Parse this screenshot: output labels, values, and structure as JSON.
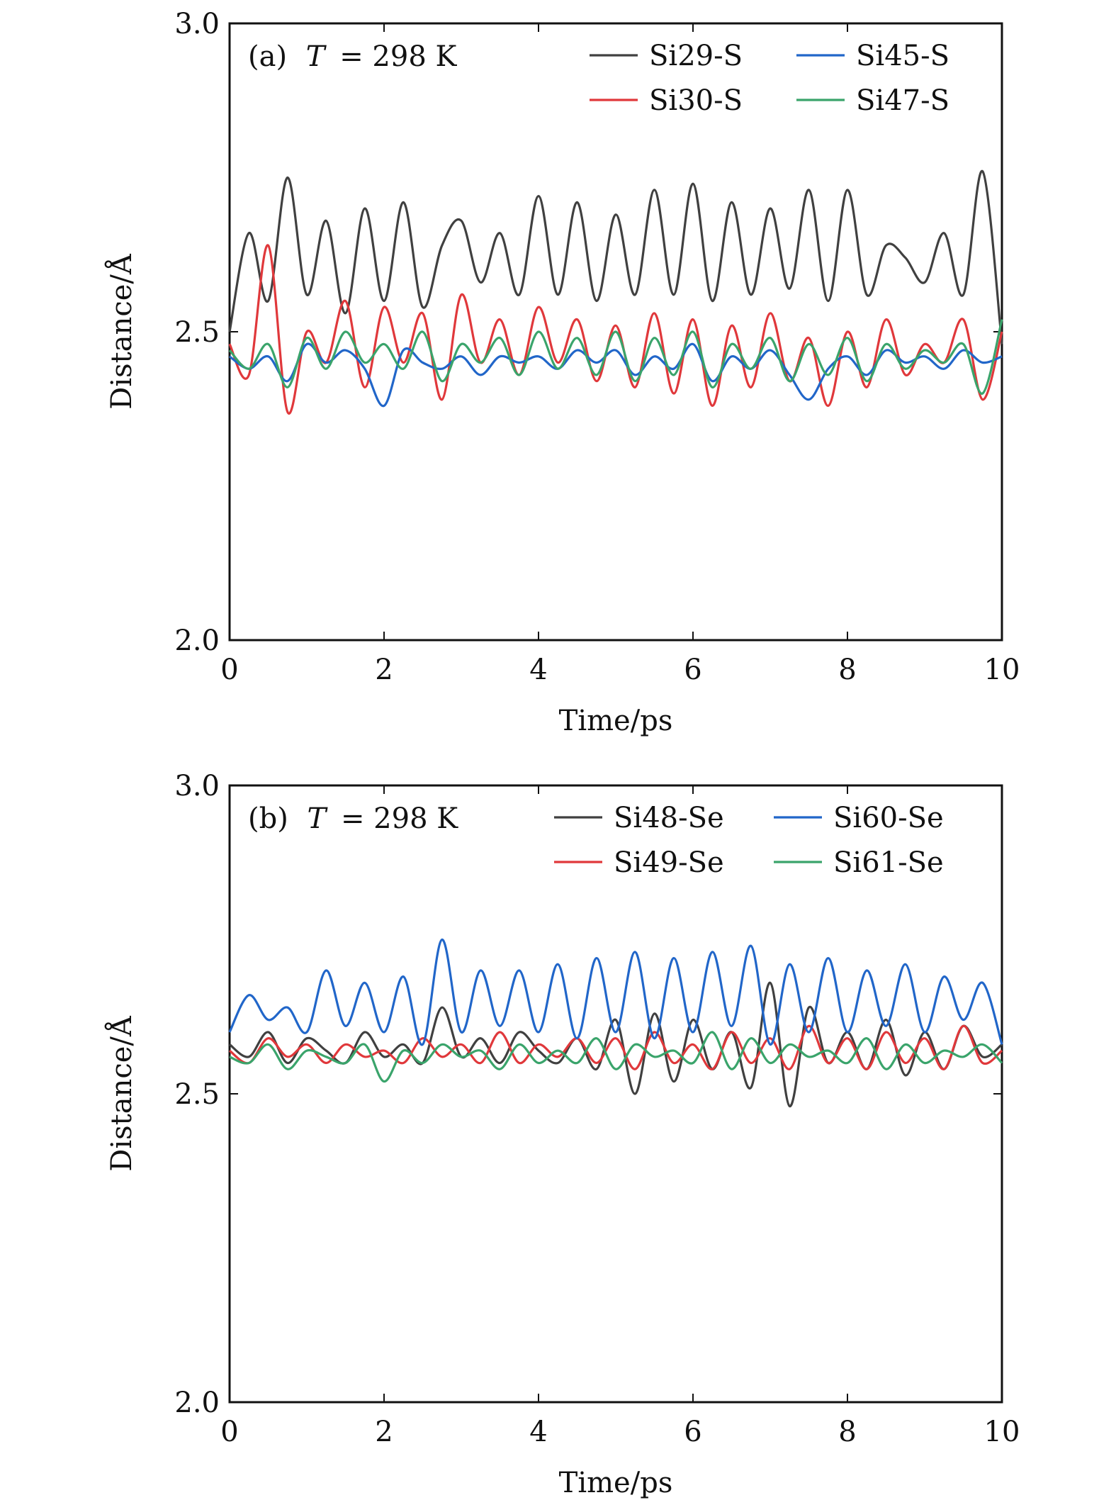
{
  "figure": {
    "colors": {
      "Si29-S": "#404040",
      "Si30-S": "#e0383b",
      "Si45-S": "#2166c9",
      "Si47-S": "#3aa46b",
      "Si48-Se": "#404040",
      "Si49-Se": "#e0383b",
      "Si60-Se": "#2166c9",
      "Si61-Se": "#3aa46b"
    }
  },
  "chart_data": [
    {
      "type": "line",
      "panel_label": "(a)",
      "annotation_T": "T",
      "annotation_rest": "= 298 K",
      "xlabel": "Time/ps",
      "ylabel": "Distance/Å",
      "xlim": [
        0,
        10
      ],
      "ylim": [
        2.0,
        3.0
      ],
      "xticks": [
        "0",
        "2",
        "4",
        "6",
        "8",
        "10"
      ],
      "yticks": [
        "2.0",
        "2.5",
        "3.0"
      ],
      "legend": "top-right",
      "x": [
        0,
        0.25,
        0.5,
        0.75,
        1,
        1.25,
        1.5,
        1.75,
        2,
        2.25,
        2.5,
        2.75,
        3,
        3.25,
        3.5,
        3.75,
        4,
        4.25,
        4.5,
        4.75,
        5,
        5.25,
        5.5,
        5.75,
        6,
        6.25,
        6.5,
        6.75,
        7,
        7.25,
        7.5,
        7.75,
        8,
        8.25,
        8.5,
        8.75,
        9,
        9.25,
        9.5,
        9.75,
        10
      ],
      "series": [
        {
          "name": "Si29-S",
          "color": "#404040",
          "values": [
            2.5,
            2.66,
            2.55,
            2.75,
            2.56,
            2.68,
            2.53,
            2.7,
            2.55,
            2.71,
            2.54,
            2.64,
            2.68,
            2.58,
            2.66,
            2.56,
            2.72,
            2.56,
            2.71,
            2.55,
            2.69,
            2.56,
            2.73,
            2.56,
            2.74,
            2.55,
            2.71,
            2.56,
            2.7,
            2.57,
            2.73,
            2.55,
            2.73,
            2.56,
            2.64,
            2.62,
            2.58,
            2.66,
            2.56,
            2.76,
            2.48
          ]
        },
        {
          "name": "Si30-S",
          "color": "#e0383b",
          "values": [
            2.48,
            2.43,
            2.64,
            2.37,
            2.5,
            2.45,
            2.55,
            2.41,
            2.54,
            2.45,
            2.53,
            2.39,
            2.56,
            2.45,
            2.52,
            2.43,
            2.54,
            2.45,
            2.52,
            2.42,
            2.51,
            2.41,
            2.53,
            2.4,
            2.52,
            2.38,
            2.51,
            2.41,
            2.53,
            2.42,
            2.49,
            2.38,
            2.5,
            2.41,
            2.52,
            2.43,
            2.48,
            2.45,
            2.52,
            2.39,
            2.5
          ]
        },
        {
          "name": "Si45-S",
          "color": "#2166c9",
          "values": [
            2.46,
            2.44,
            2.46,
            2.42,
            2.48,
            2.45,
            2.47,
            2.44,
            2.38,
            2.47,
            2.45,
            2.44,
            2.46,
            2.43,
            2.46,
            2.45,
            2.46,
            2.44,
            2.47,
            2.45,
            2.47,
            2.43,
            2.46,
            2.44,
            2.48,
            2.42,
            2.46,
            2.44,
            2.47,
            2.43,
            2.39,
            2.44,
            2.46,
            2.43,
            2.47,
            2.45,
            2.46,
            2.44,
            2.47,
            2.45,
            2.46
          ]
        },
        {
          "name": "Si47-S",
          "color": "#3aa46b",
          "values": [
            2.47,
            2.44,
            2.48,
            2.41,
            2.49,
            2.44,
            2.5,
            2.45,
            2.48,
            2.44,
            2.5,
            2.42,
            2.48,
            2.45,
            2.49,
            2.43,
            2.5,
            2.44,
            2.49,
            2.43,
            2.5,
            2.42,
            2.49,
            2.43,
            2.5,
            2.41,
            2.48,
            2.44,
            2.49,
            2.42,
            2.48,
            2.43,
            2.49,
            2.42,
            2.48,
            2.44,
            2.47,
            2.45,
            2.48,
            2.4,
            2.52
          ]
        }
      ]
    },
    {
      "type": "line",
      "panel_label": "(b)",
      "annotation_T": "T",
      "annotation_rest": "= 298 K",
      "xlabel": "Time/ps",
      "ylabel": "Distance/Å",
      "xlim": [
        0,
        10
      ],
      "ylim": [
        2.0,
        3.0
      ],
      "xticks": [
        "0",
        "2",
        "4",
        "6",
        "8",
        "10"
      ],
      "yticks": [
        "2.0",
        "2.5",
        "3.0"
      ],
      "legend": "top-right",
      "x": [
        0,
        0.25,
        0.5,
        0.75,
        1,
        1.25,
        1.5,
        1.75,
        2,
        2.25,
        2.5,
        2.75,
        3,
        3.25,
        3.5,
        3.75,
        4,
        4.25,
        4.5,
        4.75,
        5,
        5.25,
        5.5,
        5.75,
        6,
        6.25,
        6.5,
        6.75,
        7,
        7.25,
        7.5,
        7.75,
        8,
        8.25,
        8.5,
        8.75,
        9,
        9.25,
        9.5,
        9.75,
        10
      ],
      "series": [
        {
          "name": "Si48-Se",
          "color": "#404040",
          "values": [
            2.58,
            2.56,
            2.6,
            2.55,
            2.59,
            2.57,
            2.55,
            2.6,
            2.56,
            2.58,
            2.55,
            2.64,
            2.56,
            2.59,
            2.55,
            2.6,
            2.57,
            2.55,
            2.59,
            2.54,
            2.62,
            2.5,
            2.63,
            2.52,
            2.62,
            2.54,
            2.6,
            2.51,
            2.68,
            2.48,
            2.64,
            2.55,
            2.6,
            2.54,
            2.62,
            2.53,
            2.6,
            2.54,
            2.61,
            2.56,
            2.58
          ]
        },
        {
          "name": "Si49-Se",
          "color": "#e0383b",
          "values": [
            2.57,
            2.55,
            2.59,
            2.56,
            2.58,
            2.55,
            2.58,
            2.56,
            2.57,
            2.55,
            2.59,
            2.56,
            2.58,
            2.55,
            2.6,
            2.55,
            2.58,
            2.56,
            2.59,
            2.55,
            2.59,
            2.54,
            2.6,
            2.55,
            2.58,
            2.54,
            2.6,
            2.55,
            2.59,
            2.54,
            2.61,
            2.55,
            2.59,
            2.54,
            2.6,
            2.55,
            2.59,
            2.54,
            2.61,
            2.55,
            2.57
          ]
        },
        {
          "name": "Si60-Se",
          "color": "#2166c9",
          "values": [
            2.6,
            2.66,
            2.62,
            2.64,
            2.6,
            2.7,
            2.61,
            2.68,
            2.6,
            2.69,
            2.58,
            2.75,
            2.6,
            2.7,
            2.61,
            2.7,
            2.6,
            2.71,
            2.59,
            2.72,
            2.6,
            2.73,
            2.59,
            2.72,
            2.6,
            2.73,
            2.61,
            2.74,
            2.58,
            2.71,
            2.6,
            2.72,
            2.6,
            2.7,
            2.61,
            2.71,
            2.6,
            2.69,
            2.62,
            2.68,
            2.58
          ]
        },
        {
          "name": "Si61-Se",
          "color": "#3aa46b",
          "values": [
            2.56,
            2.55,
            2.58,
            2.54,
            2.57,
            2.56,
            2.55,
            2.58,
            2.52,
            2.57,
            2.55,
            2.58,
            2.56,
            2.57,
            2.54,
            2.58,
            2.55,
            2.57,
            2.55,
            2.59,
            2.54,
            2.58,
            2.56,
            2.57,
            2.55,
            2.6,
            2.54,
            2.59,
            2.55,
            2.58,
            2.56,
            2.57,
            2.55,
            2.59,
            2.54,
            2.58,
            2.55,
            2.57,
            2.56,
            2.58,
            2.55
          ]
        }
      ]
    }
  ]
}
